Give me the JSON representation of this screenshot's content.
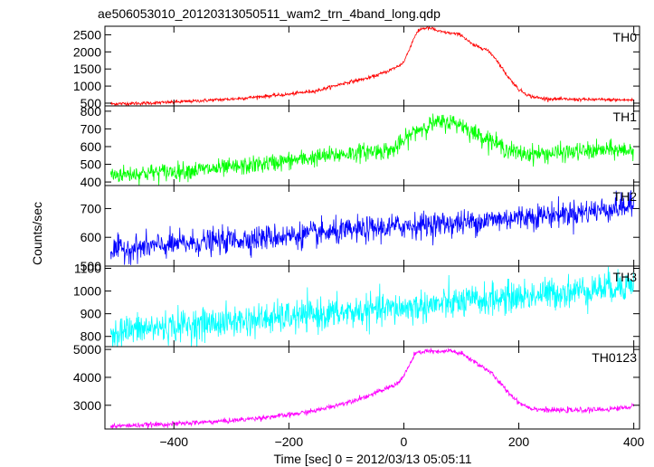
{
  "chart_data": {
    "type": "line",
    "title": "ae506053010_20120313050511_wam2_trn_4band_long.qdp",
    "xlabel": "Time [sec] 0 = 2012/03/13 05:05:11",
    "ylabel": "Counts/sec",
    "xlim": [
      -520,
      410
    ],
    "xticks": [
      -400,
      -200,
      0,
      200,
      400
    ],
    "xtick_labels": [
      "−400",
      "−200",
      "0",
      "200",
      "400"
    ],
    "grid": false,
    "shared_x": true,
    "series": [
      {
        "name": "TH0",
        "color": "#ff0000",
        "ylim": [
          420,
          2750
        ],
        "yticks": [
          500,
          1000,
          1500,
          2000,
          2500
        ],
        "noise": 25,
        "x": [
          -510,
          -450,
          -400,
          -300,
          -200,
          -150,
          -100,
          -60,
          -30,
          -10,
          0,
          10,
          20,
          30,
          40,
          50,
          60,
          80,
          100,
          110,
          120,
          140,
          150,
          160,
          180,
          200,
          220,
          240,
          260,
          300,
          350,
          400
        ],
        "values": [
          480,
          500,
          530,
          620,
          760,
          870,
          1100,
          1240,
          1420,
          1580,
          1700,
          2100,
          2500,
          2680,
          2700,
          2680,
          2600,
          2550,
          2500,
          2350,
          2200,
          2100,
          1980,
          1800,
          1300,
          900,
          700,
          640,
          620,
          610,
          600,
          590
        ]
      },
      {
        "name": "TH1",
        "color": "#00ff00",
        "ylim": [
          380,
          830
        ],
        "yticks": [
          400,
          500,
          600,
          700,
          800
        ],
        "noise": 25,
        "x": [
          -510,
          -400,
          -300,
          -200,
          -100,
          -50,
          -20,
          0,
          20,
          50,
          80,
          100,
          120,
          150,
          170,
          200,
          250,
          300,
          350,
          400
        ],
        "values": [
          440,
          460,
          480,
          520,
          560,
          575,
          580,
          630,
          690,
          730,
          740,
          725,
          680,
          640,
          600,
          560,
          560,
          570,
          580,
          580
        ]
      },
      {
        "name": "TH2",
        "color": "#0000ff",
        "ylim": [
          500,
          780
        ],
        "yticks": [
          500,
          600,
          700
        ],
        "noise": 22,
        "x": [
          -510,
          -400,
          -300,
          -200,
          -100,
          0,
          100,
          200,
          300,
          400
        ],
        "values": [
          555,
          575,
          590,
          605,
          620,
          640,
          650,
          670,
          685,
          710
        ]
      },
      {
        "name": "TH3",
        "color": "#00ffff",
        "ylim": [
          755,
          1110
        ],
        "yticks": [
          800,
          900,
          1000,
          1100
        ],
        "noise": 35,
        "x": [
          -510,
          -400,
          -300,
          -200,
          -100,
          0,
          100,
          200,
          300,
          400
        ],
        "values": [
          820,
          845,
          865,
          885,
          905,
          925,
          950,
          975,
          1000,
          1030
        ]
      },
      {
        "name": "TH0123",
        "color": "#ff00ff",
        "ylim": [
          2150,
          5100
        ],
        "yticks": [
          3000,
          4000,
          5000
        ],
        "noise": 45,
        "x": [
          -510,
          -400,
          -300,
          -200,
          -150,
          -100,
          -60,
          -30,
          -10,
          0,
          20,
          40,
          60,
          80,
          100,
          120,
          150,
          180,
          200,
          220,
          250,
          300,
          350,
          400
        ],
        "values": [
          2250,
          2330,
          2450,
          2650,
          2820,
          3100,
          3350,
          3600,
          3800,
          4050,
          4850,
          4950,
          4900,
          4950,
          4850,
          4600,
          4200,
          3500,
          3100,
          2900,
          2820,
          2820,
          2850,
          2950
        ]
      }
    ]
  }
}
